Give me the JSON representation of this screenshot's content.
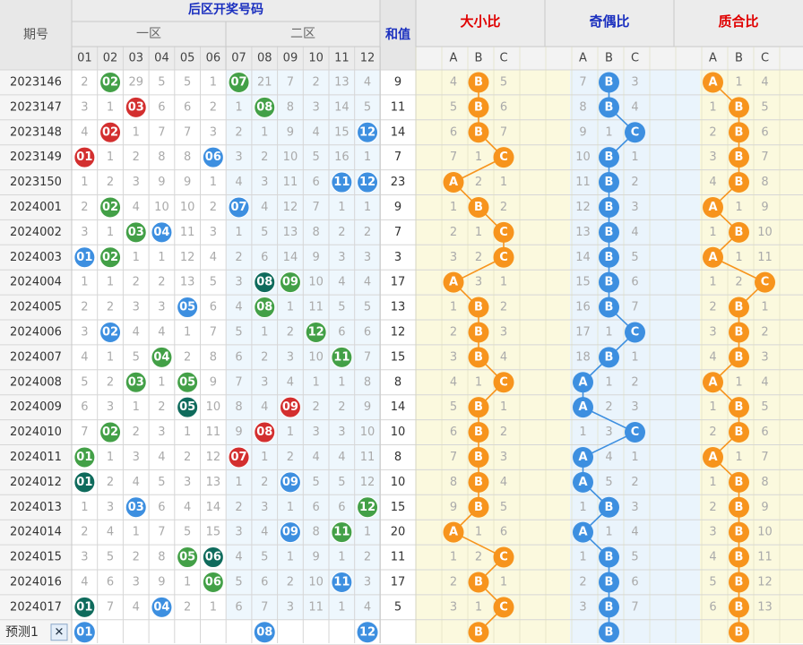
{
  "header": {
    "period": "期号",
    "back_numbers": "后区开奖号码",
    "zone1": "一区",
    "zone2": "二区",
    "sum": "和值",
    "big_small": "大小比",
    "odd_even": "奇偶比",
    "prime_comp": "质合比",
    "numbers": [
      "01",
      "02",
      "03",
      "04",
      "05",
      "06",
      "07",
      "08",
      "09",
      "10",
      "11",
      "12"
    ],
    "abc": [
      "A",
      "B",
      "C"
    ]
  },
  "chart_data": {
    "type": "table",
    "rows": [
      {
        "period": "2023146",
        "cells": [
          "2",
          "02",
          "29",
          "5",
          "5",
          "1",
          "07",
          "21",
          "7",
          "2",
          "13",
          "4"
        ],
        "sum": "9",
        "bs": [
          "4",
          "B",
          "5"
        ],
        "oe": [
          "7",
          "B",
          "3"
        ],
        "pc": [
          "A",
          "1",
          "4"
        ]
      },
      {
        "period": "2023147",
        "cells": [
          "3",
          "1",
          "03",
          "6",
          "6",
          "2",
          "1",
          "08",
          "8",
          "3",
          "14",
          "5"
        ],
        "sum": "11",
        "bs": [
          "5",
          "B",
          "6"
        ],
        "oe": [
          "8",
          "B",
          "4"
        ],
        "pc": [
          "1",
          "B",
          "5"
        ]
      },
      {
        "period": "2023148",
        "cells": [
          "4",
          "02",
          "1",
          "7",
          "7",
          "3",
          "2",
          "1",
          "9",
          "4",
          "15",
          "12"
        ],
        "sum": "14",
        "bs": [
          "6",
          "B",
          "7"
        ],
        "oe": [
          "9",
          "1",
          "C"
        ],
        "pc": [
          "2",
          "B",
          "6"
        ]
      },
      {
        "period": "2023149",
        "cells": [
          "01",
          "1",
          "2",
          "8",
          "8",
          "06",
          "3",
          "2",
          "10",
          "5",
          "16",
          "1"
        ],
        "sum": "7",
        "bs": [
          "7",
          "1",
          "C"
        ],
        "oe": [
          "10",
          "B",
          "1"
        ],
        "pc": [
          "3",
          "B",
          "7"
        ]
      },
      {
        "period": "2023150",
        "cells": [
          "1",
          "2",
          "3",
          "9",
          "9",
          "1",
          "4",
          "3",
          "11",
          "6",
          "11",
          "12"
        ],
        "sum": "23",
        "bs": [
          "A",
          "2",
          "1"
        ],
        "oe": [
          "11",
          "B",
          "2"
        ],
        "pc": [
          "4",
          "B",
          "8"
        ]
      },
      {
        "period": "2024001",
        "cells": [
          "2",
          "02",
          "4",
          "10",
          "10",
          "2",
          "07",
          "4",
          "12",
          "7",
          "1",
          "1"
        ],
        "sum": "9",
        "bs": [
          "1",
          "B",
          "2"
        ],
        "oe": [
          "12",
          "B",
          "3"
        ],
        "pc": [
          "A",
          "1",
          "9"
        ]
      },
      {
        "period": "2024002",
        "cells": [
          "3",
          "1",
          "03",
          "04",
          "11",
          "3",
          "1",
          "5",
          "13",
          "8",
          "2",
          "2"
        ],
        "sum": "7",
        "bs": [
          "2",
          "1",
          "C"
        ],
        "oe": [
          "13",
          "B",
          "4"
        ],
        "pc": [
          "1",
          "B",
          "10"
        ]
      },
      {
        "period": "2024003",
        "cells": [
          "01",
          "02",
          "1",
          "1",
          "12",
          "4",
          "2",
          "6",
          "14",
          "9",
          "3",
          "3"
        ],
        "sum": "3",
        "bs": [
          "3",
          "2",
          "C"
        ],
        "oe": [
          "14",
          "B",
          "5"
        ],
        "pc": [
          "A",
          "1",
          "11"
        ]
      },
      {
        "period": "2024004",
        "cells": [
          "1",
          "1",
          "2",
          "2",
          "13",
          "5",
          "3",
          "08",
          "09",
          "10",
          "4",
          "4"
        ],
        "sum": "17",
        "bs": [
          "A",
          "3",
          "1"
        ],
        "oe": [
          "15",
          "B",
          "6"
        ],
        "pc": [
          "1",
          "2",
          "C"
        ]
      },
      {
        "period": "2024005",
        "cells": [
          "2",
          "2",
          "3",
          "3",
          "05",
          "6",
          "4",
          "08",
          "1",
          "11",
          "5",
          "5"
        ],
        "sum": "13",
        "bs": [
          "1",
          "B",
          "2"
        ],
        "oe": [
          "16",
          "B",
          "7"
        ],
        "pc": [
          "2",
          "B",
          "1"
        ]
      },
      {
        "period": "2024006",
        "cells": [
          "3",
          "02",
          "4",
          "4",
          "1",
          "7",
          "5",
          "1",
          "2",
          "12",
          "6",
          "6"
        ],
        "sum": "12",
        "bs": [
          "2",
          "B",
          "3"
        ],
        "oe": [
          "17",
          "1",
          "C"
        ],
        "pc": [
          "3",
          "B",
          "2"
        ]
      },
      {
        "period": "2024007",
        "cells": [
          "4",
          "1",
          "5",
          "04",
          "2",
          "8",
          "6",
          "2",
          "3",
          "10",
          "11",
          "7"
        ],
        "sum": "15",
        "bs": [
          "3",
          "B",
          "4"
        ],
        "oe": [
          "18",
          "B",
          "1"
        ],
        "pc": [
          "4",
          "B",
          "3"
        ]
      },
      {
        "period": "2024008",
        "cells": [
          "5",
          "2",
          "03",
          "1",
          "05",
          "9",
          "7",
          "3",
          "4",
          "1",
          "1",
          "8"
        ],
        "sum": "8",
        "bs": [
          "4",
          "1",
          "C"
        ],
        "oe": [
          "A",
          "1",
          "2"
        ],
        "pc": [
          "A",
          "1",
          "4"
        ]
      },
      {
        "period": "2024009",
        "cells": [
          "6",
          "3",
          "1",
          "2",
          "05",
          "10",
          "8",
          "4",
          "09",
          "2",
          "2",
          "9"
        ],
        "sum": "14",
        "bs": [
          "5",
          "B",
          "1"
        ],
        "oe": [
          "A",
          "2",
          "3"
        ],
        "pc": [
          "1",
          "B",
          "5"
        ]
      },
      {
        "period": "2024010",
        "cells": [
          "7",
          "02",
          "2",
          "3",
          "1",
          "11",
          "9",
          "08",
          "1",
          "3",
          "3",
          "10"
        ],
        "sum": "10",
        "bs": [
          "6",
          "B",
          "2"
        ],
        "oe": [
          "1",
          "3",
          "C"
        ],
        "pc": [
          "2",
          "B",
          "6"
        ]
      },
      {
        "period": "2024011",
        "cells": [
          "01",
          "1",
          "3",
          "4",
          "2",
          "12",
          "07",
          "1",
          "2",
          "4",
          "4",
          "11"
        ],
        "sum": "8",
        "bs": [
          "7",
          "B",
          "3"
        ],
        "oe": [
          "A",
          "4",
          "1"
        ],
        "pc": [
          "A",
          "1",
          "7"
        ]
      },
      {
        "period": "2024012",
        "cells": [
          "01",
          "2",
          "4",
          "5",
          "3",
          "13",
          "1",
          "2",
          "09",
          "5",
          "5",
          "12"
        ],
        "sum": "10",
        "bs": [
          "8",
          "B",
          "4"
        ],
        "oe": [
          "A",
          "5",
          "2"
        ],
        "pc": [
          "1",
          "B",
          "8"
        ]
      },
      {
        "period": "2024013",
        "cells": [
          "1",
          "3",
          "03",
          "6",
          "4",
          "14",
          "2",
          "3",
          "1",
          "6",
          "6",
          "12"
        ],
        "sum": "15",
        "bs": [
          "9",
          "B",
          "5"
        ],
        "oe": [
          "1",
          "B",
          "3"
        ],
        "pc": [
          "2",
          "B",
          "9"
        ]
      },
      {
        "period": "2024014",
        "cells": [
          "2",
          "4",
          "1",
          "7",
          "5",
          "15",
          "3",
          "4",
          "09",
          "8",
          "11",
          "1"
        ],
        "sum": "20",
        "bs": [
          "A",
          "1",
          "6"
        ],
        "oe": [
          "A",
          "1",
          "4"
        ],
        "pc": [
          "3",
          "B",
          "10"
        ]
      },
      {
        "period": "2024015",
        "cells": [
          "3",
          "5",
          "2",
          "8",
          "05",
          "06",
          "4",
          "5",
          "1",
          "9",
          "1",
          "2"
        ],
        "sum": "11",
        "bs": [
          "1",
          "2",
          "C"
        ],
        "oe": [
          "1",
          "B",
          "5"
        ],
        "pc": [
          "4",
          "B",
          "11"
        ]
      },
      {
        "period": "2024016",
        "cells": [
          "4",
          "6",
          "3",
          "9",
          "1",
          "06",
          "5",
          "6",
          "2",
          "10",
          "11",
          "3"
        ],
        "sum": "17",
        "bs": [
          "2",
          "B",
          "1"
        ],
        "oe": [
          "2",
          "B",
          "6"
        ],
        "pc": [
          "5",
          "B",
          "12"
        ]
      },
      {
        "period": "2024017",
        "cells": [
          "01",
          "7",
          "4",
          "04",
          "2",
          "1",
          "6",
          "7",
          "3",
          "11",
          "1",
          "4"
        ],
        "sum": "5",
        "bs": [
          "3",
          "1",
          "C"
        ],
        "oe": [
          "3",
          "B",
          "7"
        ],
        "pc": [
          "6",
          "B",
          "13"
        ]
      }
    ],
    "predict": {
      "label": "预测1",
      "close": "✕",
      "balls": [
        "01",
        "08",
        "12"
      ],
      "bs": "B",
      "oe": "B",
      "pc": "B"
    }
  },
  "colors": {
    "red": "#d32f2f",
    "green": "#43a047",
    "blue": "#3d8fe0",
    "teal": "#0f6b5c",
    "orange": "#f7941d",
    "oeBlue": "#3d8fe0",
    "gray": "#9a9a9a",
    "title_red": "#e00000",
    "title_blue": "#1a2fbf"
  }
}
